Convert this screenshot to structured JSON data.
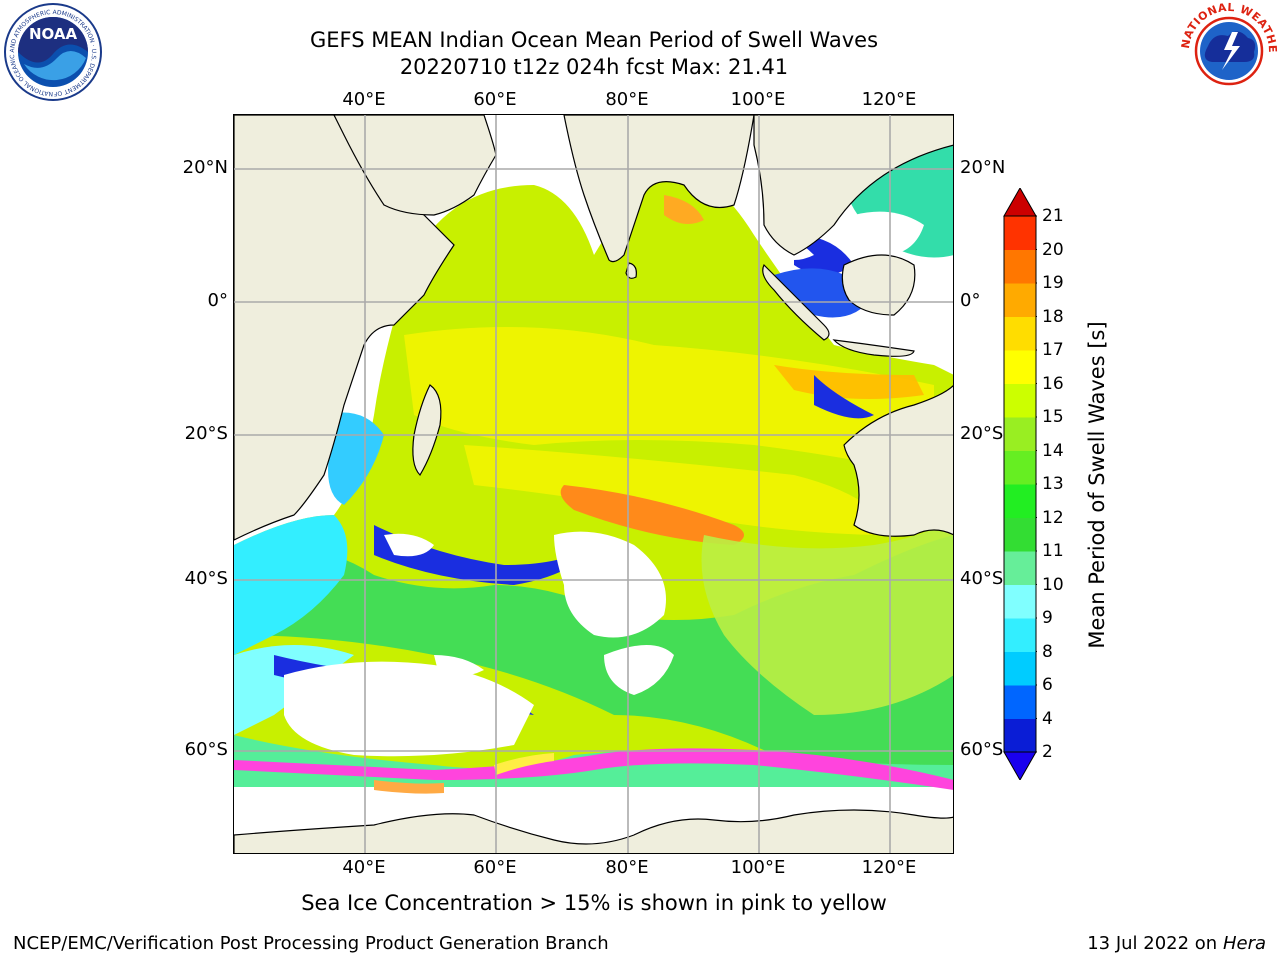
{
  "title": {
    "line1": "GEFS MEAN Indian Ocean Mean Period of Swell Waves",
    "line2": "20220710 t12z 024h fcst   Max: 21.41"
  },
  "map": {
    "lon_ticks": [
      "40°E",
      "60°E",
      "80°E",
      "100°E",
      "120°E"
    ],
    "lat_ticks_left": [
      "20°N",
      "0°",
      "20°S",
      "40°S",
      "60°S"
    ],
    "lat_ticks_right": [
      "20°N",
      "0°",
      "20°S",
      "40°S",
      "60°S"
    ],
    "land_color": "#efeedd",
    "ice_colors": [
      "#ff44dd",
      "#ffaa44",
      "#ffee44"
    ]
  },
  "colorbar": {
    "label": "Mean Period of Swell Waves [s]",
    "ticks": [
      "2",
      "4",
      "6",
      "8",
      "9",
      "10",
      "11",
      "12",
      "13",
      "14",
      "15",
      "16",
      "17",
      "18",
      "19",
      "20",
      "21"
    ],
    "colors": [
      "#0a1dd6",
      "#0066ff",
      "#00ccff",
      "#33eeff",
      "#80ffff",
      "#66ee99",
      "#33dd33",
      "#22ee22",
      "#66ee22",
      "#99ee22",
      "#ccff00",
      "#ffff00",
      "#ffdd00",
      "#ffaa00",
      "#ff7700",
      "#ff3300",
      "#ee0000"
    ],
    "under_color": "#1a00ee",
    "over_color": "#cc0000"
  },
  "caption": "Sea Ice Concentration > 15% is shown in pink to yellow",
  "footer": {
    "left": "NCEP/EMC/Verification Post Processing Product Generation Branch",
    "right_date": "13 Jul 2022 on ",
    "right_host": "Hera"
  },
  "logos": {
    "noaa_text": "NOAA",
    "noaa_ring": "NATIONAL OCEANIC AND ATMOSPHERIC ADMINISTRATION · U.S. DEPARTMENT OF COMMERCE",
    "nws_ring": "NATIONAL WEATHER SERVICE"
  }
}
